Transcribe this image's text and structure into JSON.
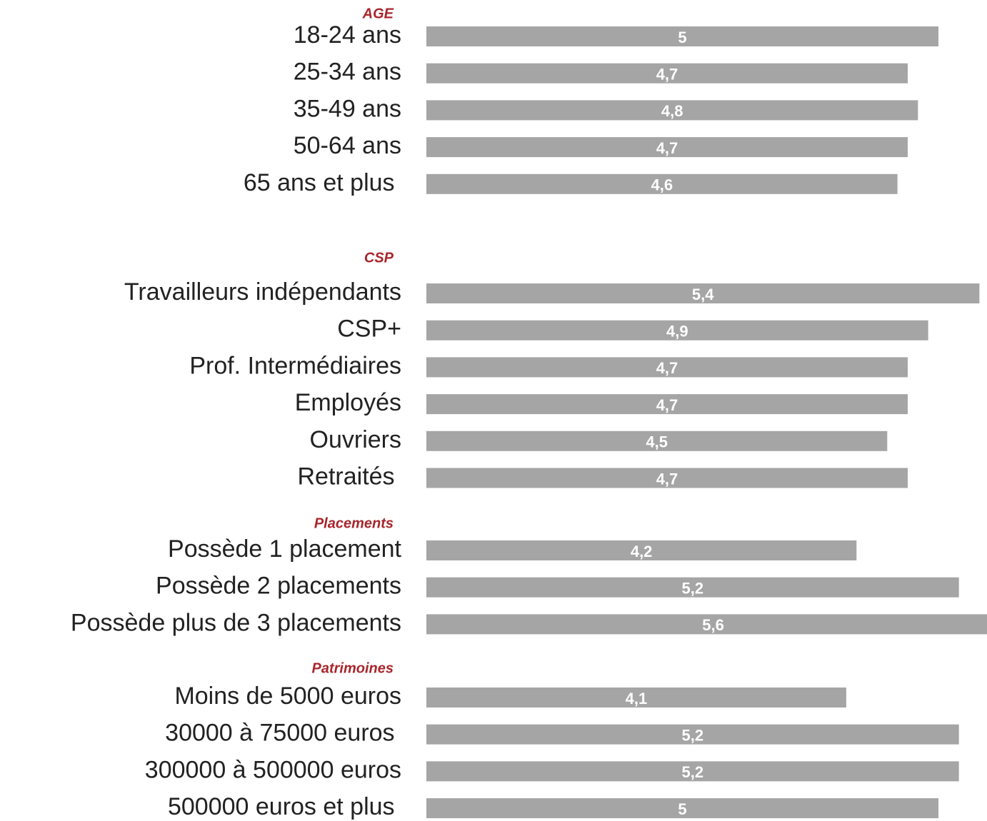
{
  "chart_data": {
    "type": "bar",
    "orientation": "horizontal",
    "color": "#a5a5a5",
    "groups": [
      {
        "name": "AGE",
        "categories": [
          "18-24 ans",
          "25-34 ans",
          "35-49 ans",
          "50-64 ans",
          "65 ans et plus "
        ],
        "values": [
          5,
          4.7,
          4.8,
          4.7,
          4.6
        ],
        "value_labels": [
          "5",
          "4,7",
          "4,8",
          "4,7",
          "4,6"
        ]
      },
      {
        "name": "CSP",
        "categories": [
          "Travailleurs indépendants",
          "CSP+",
          "Prof. Intermédiaires",
          "Employés",
          "Ouvriers",
          "Retraités "
        ],
        "values": [
          5.4,
          4.9,
          4.7,
          4.7,
          4.5,
          4.7
        ],
        "value_labels": [
          "5,4",
          "4,9",
          "4,7",
          "4,7",
          "4,5",
          "4,7"
        ]
      },
      {
        "name": "Placements",
        "categories": [
          "Possède 1 placement",
          "Possède 2 placements",
          "Possède plus de 3 placements"
        ],
        "values": [
          4.2,
          5.2,
          5.6
        ],
        "value_labels": [
          "4,2",
          "5,2",
          "5,6"
        ]
      },
      {
        "name": "Patrimoines",
        "categories": [
          "Moins de 5000 euros",
          "30000 à 75000 euros ",
          "300000 à 500000 euros",
          "500000 euros et plus "
        ],
        "values": [
          4.1,
          5.2,
          5.2,
          5
        ],
        "value_labels": [
          "4,1",
          "5,2",
          "5,2",
          "5"
        ]
      }
    ]
  }
}
